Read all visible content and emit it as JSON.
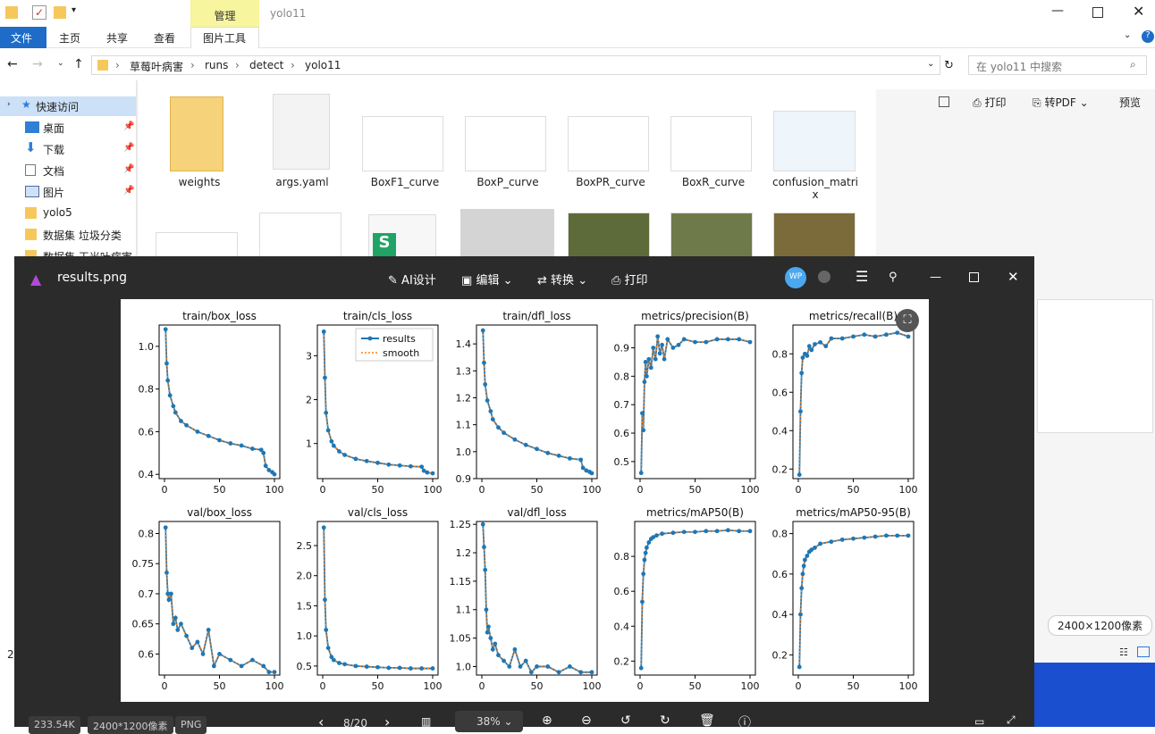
{
  "explorer": {
    "ribbon_tab_highlight": "管理",
    "window_title": "yolo11",
    "tabs": [
      "文件",
      "主页",
      "共享",
      "查看",
      "图片工具"
    ],
    "breadcrumb": [
      "草莓叶病害",
      "runs",
      "detect",
      "yolo11"
    ],
    "search_placeholder": "在 yolo11 中搜索",
    "nav": [
      {
        "label": "快速访问",
        "pinned": false
      },
      {
        "label": "桌面",
        "pinned": true
      },
      {
        "label": "下载",
        "pinned": true
      },
      {
        "label": "文档",
        "pinned": true
      },
      {
        "label": "图片",
        "pinned": true
      },
      {
        "label": "yolo5",
        "pinned": false
      },
      {
        "label": "数据集 垃圾分类",
        "pinned": false
      },
      {
        "label": "数据集 玉米叶病害",
        "pinned": false
      }
    ],
    "files": [
      "weights",
      "args.yaml",
      "BoxF1_curve",
      "BoxP_curve",
      "BoxPR_curve",
      "BoxR_curve",
      "confusion_matri x"
    ],
    "preview_toolbar": {
      "print": "打印",
      "to_pdf": "转PDF",
      "preview": "预览"
    },
    "resolution": "2400×1200像素",
    "left_edge_number": "2"
  },
  "viewer": {
    "filename": "results.png",
    "toolbar": {
      "ai": "AI设计",
      "edit": "编辑",
      "convert": "转换",
      "print": "打印"
    },
    "avatar": "WP",
    "status": {
      "size": "233.54K",
      "dims": "2400*1200像素",
      "format": "PNG",
      "page": "8/20",
      "zoom": "38%"
    }
  },
  "chart_data": [
    {
      "type": "line",
      "title": "train/box_loss",
      "xlim": [
        0,
        100
      ],
      "yticks": [
        1.0,
        0.8,
        0.6,
        0.4
      ],
      "ylim": [
        0.38,
        1.1
      ],
      "x": [
        1,
        2,
        3,
        5,
        8,
        10,
        15,
        20,
        30,
        40,
        50,
        60,
        70,
        80,
        88,
        90,
        92,
        95,
        98,
        100
      ],
      "series": [
        {
          "name": "results",
          "values": [
            1.08,
            0.92,
            0.84,
            0.77,
            0.72,
            0.69,
            0.65,
            0.63,
            0.6,
            0.58,
            0.56,
            0.545,
            0.535,
            0.52,
            0.515,
            0.5,
            0.44,
            0.42,
            0.41,
            0.4
          ]
        }
      ]
    },
    {
      "type": "line",
      "title": "train/cls_loss",
      "xlim": [
        0,
        100
      ],
      "yticks": [
        3,
        2,
        1
      ],
      "ylim": [
        0.2,
        3.7
      ],
      "legend": [
        "results",
        "smooth"
      ],
      "x": [
        1,
        2,
        3,
        5,
        8,
        10,
        15,
        20,
        30,
        40,
        50,
        60,
        70,
        80,
        90,
        92,
        95,
        100
      ],
      "series": [
        {
          "name": "results",
          "values": [
            3.55,
            2.5,
            1.7,
            1.3,
            1.05,
            0.95,
            0.82,
            0.74,
            0.65,
            0.6,
            0.56,
            0.52,
            0.5,
            0.48,
            0.47,
            0.38,
            0.34,
            0.32
          ]
        }
      ]
    },
    {
      "type": "line",
      "title": "train/dfl_loss",
      "xlim": [
        0,
        100
      ],
      "yticks": [
        1.4,
        1.3,
        1.2,
        1.1,
        1.0,
        0.9
      ],
      "ylim": [
        0.9,
        1.47
      ],
      "x": [
        1,
        2,
        3,
        5,
        8,
        10,
        15,
        20,
        30,
        40,
        50,
        60,
        70,
        80,
        90,
        92,
        95,
        98,
        100
      ],
      "series": [
        {
          "name": "results",
          "values": [
            1.45,
            1.33,
            1.25,
            1.19,
            1.15,
            1.12,
            1.09,
            1.07,
            1.045,
            1.025,
            1.01,
            0.995,
            0.985,
            0.975,
            0.97,
            0.94,
            0.93,
            0.925,
            0.92
          ]
        }
      ]
    },
    {
      "type": "line",
      "title": "metrics/precision(B)",
      "xlim": [
        0,
        100
      ],
      "yticks": [
        0.9,
        0.8,
        0.7,
        0.6,
        0.5
      ],
      "ylim": [
        0.44,
        0.98
      ],
      "x": [
        1,
        2,
        3,
        4,
        5,
        6,
        8,
        10,
        12,
        14,
        16,
        18,
        20,
        22,
        25,
        30,
        35,
        40,
        50,
        60,
        70,
        80,
        90,
        100
      ],
      "series": [
        {
          "name": "results",
          "values": [
            0.46,
            0.67,
            0.61,
            0.78,
            0.85,
            0.8,
            0.86,
            0.83,
            0.9,
            0.86,
            0.94,
            0.88,
            0.91,
            0.86,
            0.93,
            0.9,
            0.91,
            0.93,
            0.92,
            0.92,
            0.93,
            0.93,
            0.93,
            0.92
          ]
        }
      ]
    },
    {
      "type": "line",
      "title": "metrics/recall(B)",
      "xlim": [
        0,
        100
      ],
      "yticks": [
        0.8,
        0.6,
        0.4,
        0.2
      ],
      "ylim": [
        0.15,
        0.95
      ],
      "x": [
        1,
        2,
        3,
        4,
        6,
        8,
        10,
        12,
        15,
        20,
        25,
        30,
        40,
        50,
        60,
        70,
        80,
        90,
        100
      ],
      "series": [
        {
          "name": "results",
          "values": [
            0.17,
            0.5,
            0.7,
            0.78,
            0.8,
            0.79,
            0.84,
            0.82,
            0.85,
            0.86,
            0.84,
            0.88,
            0.88,
            0.89,
            0.9,
            0.89,
            0.9,
            0.91,
            0.89
          ]
        }
      ]
    },
    {
      "type": "line",
      "title": "val/box_loss",
      "xlim": [
        0,
        100
      ],
      "yticks": [
        0.8,
        0.75,
        0.7,
        0.65,
        0.6
      ],
      "ylim": [
        0.565,
        0.82
      ],
      "x": [
        1,
        2,
        3,
        4,
        6,
        8,
        10,
        12,
        15,
        20,
        25,
        30,
        35,
        40,
        45,
        50,
        60,
        70,
        80,
        90,
        95,
        100
      ],
      "series": [
        {
          "name": "results",
          "values": [
            0.81,
            0.735,
            0.7,
            0.69,
            0.7,
            0.65,
            0.66,
            0.64,
            0.65,
            0.63,
            0.61,
            0.62,
            0.6,
            0.64,
            0.58,
            0.6,
            0.59,
            0.58,
            0.59,
            0.58,
            0.57,
            0.57
          ]
        }
      ]
    },
    {
      "type": "line",
      "title": "val/cls_loss",
      "xlim": [
        0,
        100
      ],
      "yticks": [
        2.5,
        2.0,
        1.5,
        1.0,
        0.5
      ],
      "ylim": [
        0.35,
        2.9
      ],
      "x": [
        1,
        2,
        3,
        5,
        8,
        10,
        15,
        20,
        30,
        40,
        50,
        60,
        70,
        80,
        90,
        100
      ],
      "series": [
        {
          "name": "results",
          "values": [
            2.8,
            1.6,
            1.1,
            0.8,
            0.65,
            0.6,
            0.55,
            0.53,
            0.5,
            0.49,
            0.48,
            0.47,
            0.47,
            0.46,
            0.46,
            0.46
          ]
        }
      ]
    },
    {
      "type": "line",
      "title": "val/dfl_loss",
      "xlim": [
        0,
        100
      ],
      "yticks": [
        1.25,
        1.2,
        1.15,
        1.1,
        1.05,
        1.0
      ],
      "ylim": [
        0.985,
        1.255
      ],
      "x": [
        1,
        2,
        3,
        4,
        5,
        6,
        8,
        10,
        12,
        15,
        20,
        25,
        30,
        35,
        40,
        45,
        50,
        60,
        70,
        80,
        90,
        100
      ],
      "series": [
        {
          "name": "results",
          "values": [
            1.25,
            1.21,
            1.17,
            1.1,
            1.06,
            1.07,
            1.05,
            1.03,
            1.04,
            1.02,
            1.01,
            1.0,
            1.03,
            1.0,
            1.01,
            0.99,
            1.0,
            1.0,
            0.99,
            1.0,
            0.99,
            0.99
          ]
        }
      ]
    },
    {
      "type": "line",
      "title": "metrics/mAP50(B)",
      "xlim": [
        0,
        100
      ],
      "yticks": [
        0.8,
        0.6,
        0.4,
        0.2
      ],
      "ylim": [
        0.12,
        1.0
      ],
      "x": [
        1,
        2,
        3,
        4,
        5,
        6,
        8,
        10,
        12,
        15,
        20,
        30,
        40,
        50,
        60,
        70,
        80,
        90,
        100
      ],
      "series": [
        {
          "name": "results",
          "values": [
            0.16,
            0.54,
            0.7,
            0.78,
            0.82,
            0.85,
            0.88,
            0.9,
            0.91,
            0.92,
            0.93,
            0.935,
            0.94,
            0.94,
            0.945,
            0.945,
            0.95,
            0.945,
            0.945
          ]
        }
      ]
    },
    {
      "type": "line",
      "title": "metrics/mAP50-95(B)",
      "xlim": [
        0,
        100
      ],
      "yticks": [
        0.8,
        0.6,
        0.4,
        0.2
      ],
      "ylim": [
        0.1,
        0.86
      ],
      "x": [
        1,
        2,
        3,
        4,
        5,
        6,
        8,
        10,
        12,
        15,
        20,
        30,
        40,
        50,
        60,
        70,
        80,
        90,
        100
      ],
      "series": [
        {
          "name": "results",
          "values": [
            0.14,
            0.4,
            0.53,
            0.6,
            0.64,
            0.67,
            0.69,
            0.71,
            0.72,
            0.73,
            0.75,
            0.76,
            0.77,
            0.775,
            0.78,
            0.785,
            0.79,
            0.79,
            0.79
          ]
        }
      ]
    }
  ]
}
